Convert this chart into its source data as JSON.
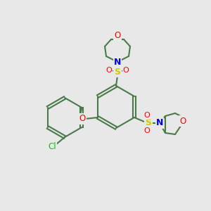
{
  "background_color": "#e8e8e8",
  "bond_color": "#4a7a4a",
  "atom_colors": {
    "O": "#ff0000",
    "N": "#0000ff",
    "S": "#cccc00",
    "Cl": "#00cc00",
    "C": "#4a7a4a"
  },
  "figsize": [
    3.0,
    3.0
  ],
  "dpi": 100
}
